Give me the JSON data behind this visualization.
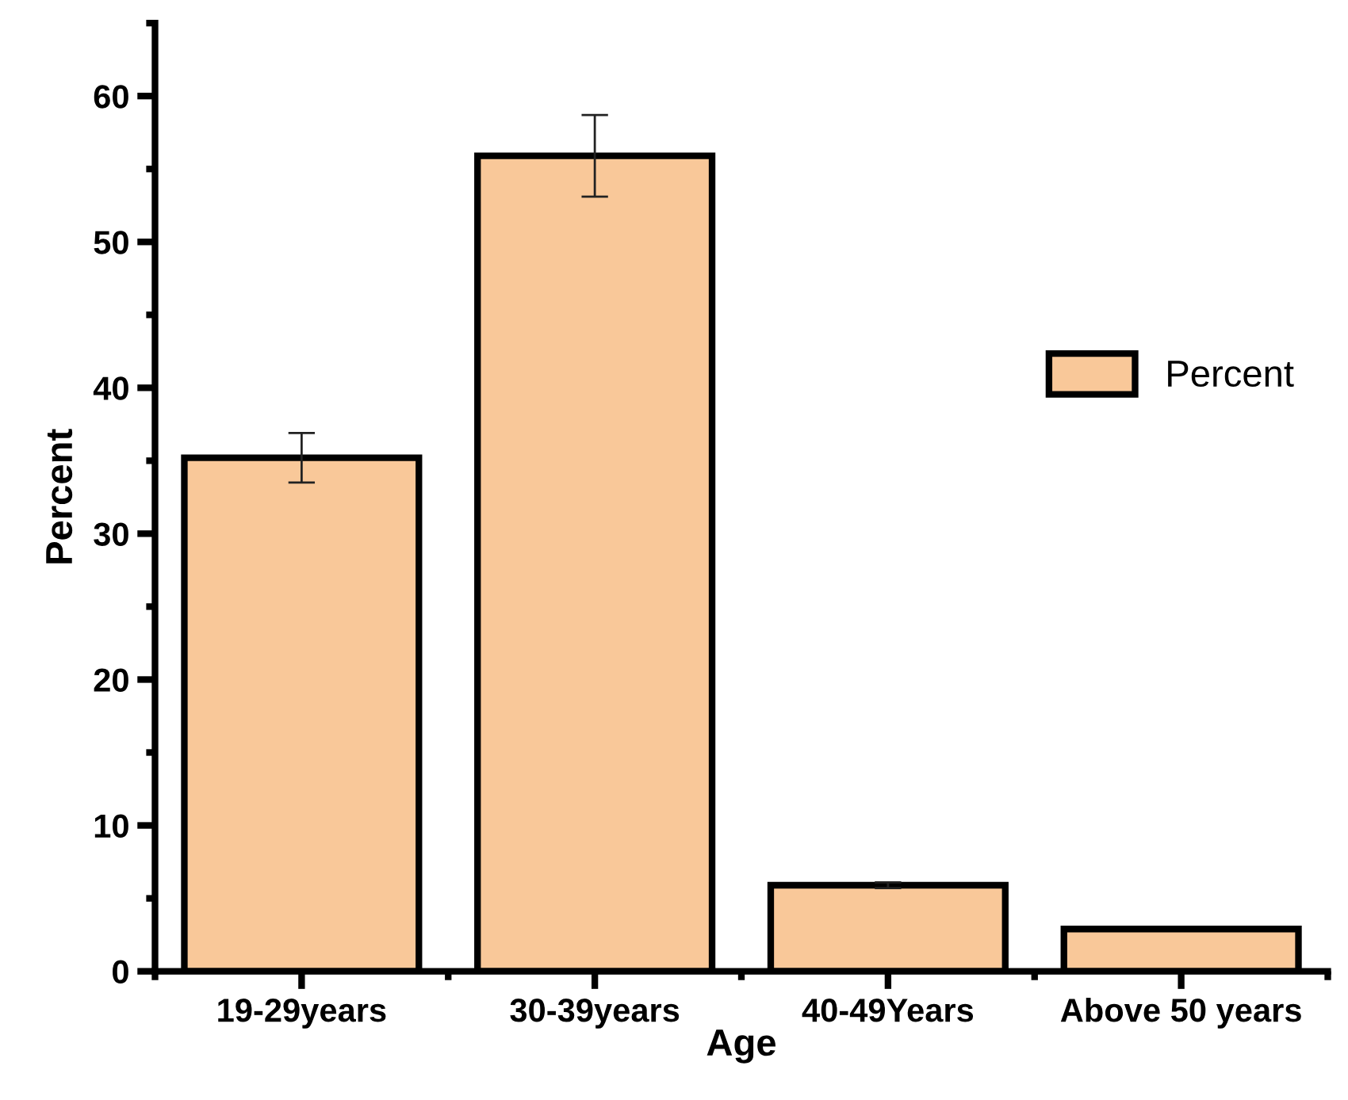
{
  "chart_data": {
    "type": "bar",
    "xlabel": "Age",
    "ylabel": "Percent",
    "categories": [
      "19-29years",
      "30-39years",
      "40-49Years",
      "Above 50 years"
    ],
    "series": [
      {
        "name": "Percent",
        "color": "#f9c899",
        "values": [
          35.2,
          55.9,
          5.9,
          2.9
        ],
        "errors": [
          1.7,
          2.8,
          0.2,
          null
        ]
      }
    ],
    "ylim": [
      0,
      65
    ],
    "yticks": [
      0,
      10,
      20,
      30,
      40,
      50,
      60
    ],
    "grid": false,
    "legend": "right"
  }
}
